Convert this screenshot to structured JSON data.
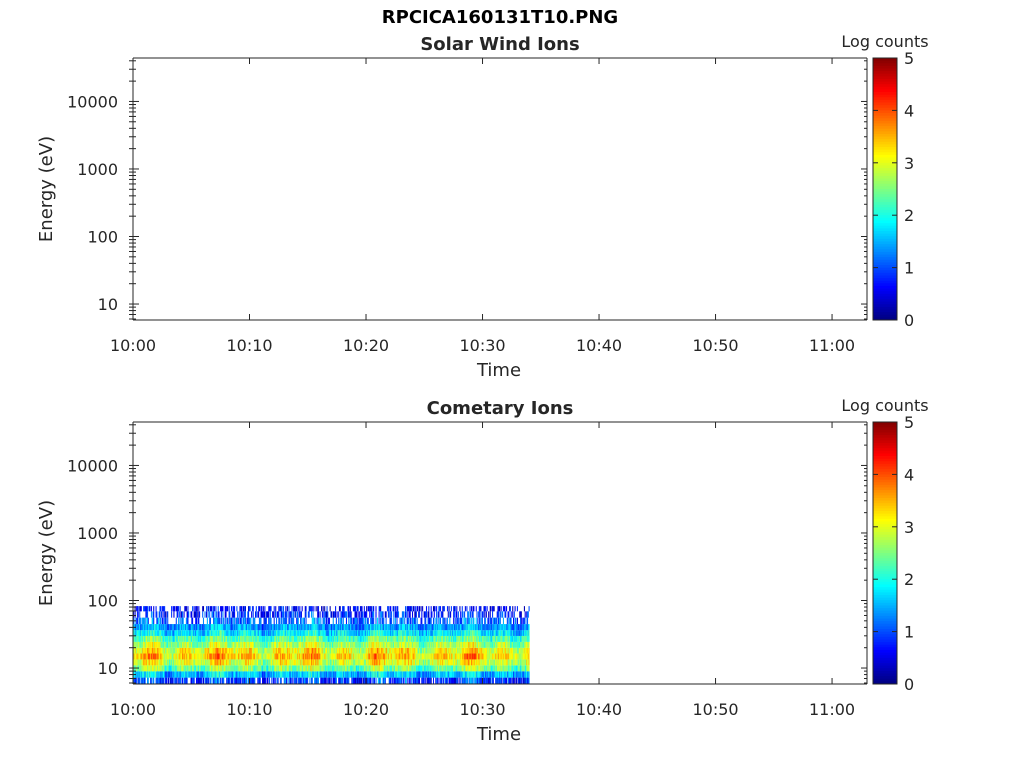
{
  "figure": {
    "title": "RPCICA160131T10.PNG"
  },
  "colors": {
    "axis": "#262626",
    "background": "#ffffff"
  },
  "chart_data": [
    {
      "type": "heatmap",
      "title": "Solar Wind Ions",
      "xlabel": "Time",
      "ylabel": "Energy (eV)",
      "x_ticks": [
        "10:00",
        "10:10",
        "10:20",
        "10:30",
        "10:40",
        "10:50",
        "11:00"
      ],
      "y_ticks": [
        "10",
        "100",
        "1000",
        "10000"
      ],
      "xlim": [
        "10:00",
        "11:03"
      ],
      "ylim": [
        5.8,
        44000
      ],
      "y_scale": "log",
      "colorbar": {
        "label": "Log counts",
        "ticks": [
          "0",
          "1",
          "2",
          "3",
          "4",
          "5"
        ],
        "range": [
          0,
          5
        ],
        "colormap": "jet"
      },
      "data": "none (no counts recorded)"
    },
    {
      "type": "heatmap",
      "title": "Cometary Ions",
      "xlabel": "Time",
      "ylabel": "Energy (eV)",
      "x_ticks": [
        "10:00",
        "10:10",
        "10:20",
        "10:30",
        "10:40",
        "10:50",
        "11:00"
      ],
      "y_ticks": [
        "10",
        "100",
        "1000",
        "10000"
      ],
      "xlim": [
        "10:00",
        "11:03"
      ],
      "ylim": [
        5.8,
        44000
      ],
      "y_scale": "log",
      "colorbar": {
        "label": "Log counts",
        "ticks": [
          "0",
          "1",
          "2",
          "3",
          "4",
          "5"
        ],
        "range": [
          0,
          5
        ],
        "colormap": "jet"
      },
      "data_time_range": [
        "10:00",
        "10:34"
      ],
      "energy_profile": {
        "energy_eV": [
          6.5,
          8,
          10,
          12,
          15,
          18,
          22,
          27,
          33,
          40,
          50,
          62,
          77
        ],
        "typical_log_counts": [
          0.9,
          1.6,
          2.5,
          3.0,
          3.3,
          3.1,
          2.7,
          2.3,
          1.8,
          1.4,
          1.1,
          0.8,
          0.6
        ]
      }
    }
  ]
}
